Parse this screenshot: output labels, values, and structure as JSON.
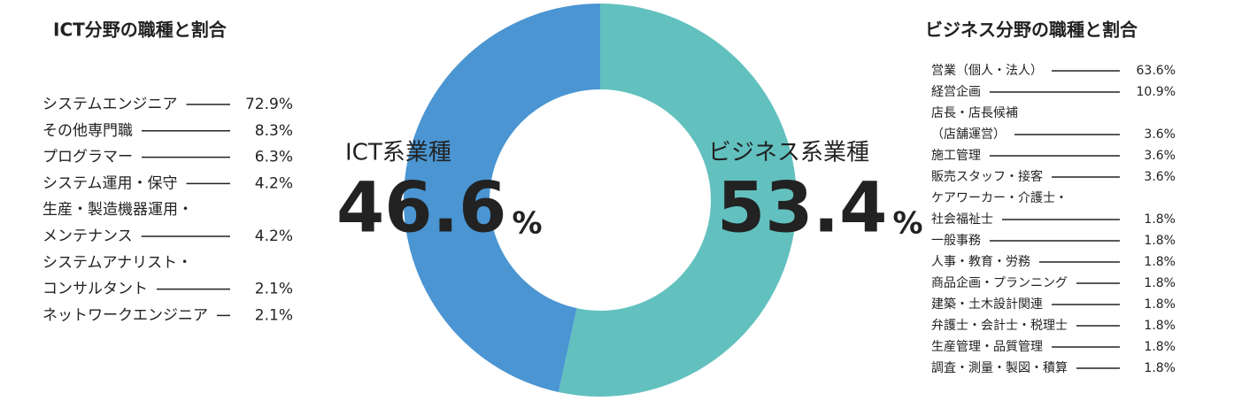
{
  "chart_data": {
    "type": "donut",
    "unit": "%",
    "series": [
      {
        "name": "ビジネス系業種",
        "color": "#62c1bf",
        "value": 53.4
      },
      {
        "name": "ICT系業種",
        "color": "#4a95d2",
        "value": 46.6
      }
    ],
    "ict_list": {
      "title": "ICT分野の職種と割合",
      "categories": [
        [
          "システムエンジニア"
        ],
        [
          "その他専門職"
        ],
        [
          "プログラマー"
        ],
        [
          "システム運用・保守"
        ],
        [
          "生産・製造機器運用・",
          "メンテナンス"
        ],
        [
          "システムアナリスト・",
          "コンサルタント"
        ],
        [
          "ネットワークエンジニア"
        ]
      ],
      "values": [
        72.9,
        8.3,
        6.3,
        4.2,
        4.2,
        2.1,
        2.1
      ],
      "value_labels": [
        "72.9%",
        "8.3%",
        "6.3%",
        "4.2%",
        "4.2%",
        "2.1%",
        "2.1%"
      ]
    },
    "business_list": {
      "title": "ビジネス分野の職種と割合",
      "categories": [
        [
          "営業（個人・法人）"
        ],
        [
          "経営企画"
        ],
        [
          "店長・店長候補",
          "（店舗運営）"
        ],
        [
          "施工管理"
        ],
        [
          "販売スタッフ・接客"
        ],
        [
          "ケアワーカー・介護士・",
          "社会福祉士"
        ],
        [
          "一般事務"
        ],
        [
          "人事・教育・労務"
        ],
        [
          "商品企画・プランニング"
        ],
        [
          "建築・土木設計関連"
        ],
        [
          "弁護士・会計士・税理士"
        ],
        [
          "生産管理・品質管理"
        ],
        [
          "調査・測量・製図・積算"
        ]
      ],
      "values": [
        63.6,
        10.9,
        3.6,
        3.6,
        3.6,
        1.8,
        1.8,
        1.8,
        1.8,
        1.8,
        1.8,
        1.8,
        1.8
      ],
      "value_labels": [
        "63.6%",
        "10.9%",
        "3.6%",
        "3.6%",
        "3.6%",
        "1.8%",
        "1.8%",
        "1.8%",
        "1.8%",
        "1.8%",
        "1.8%",
        "1.8%",
        "1.8%"
      ]
    }
  }
}
